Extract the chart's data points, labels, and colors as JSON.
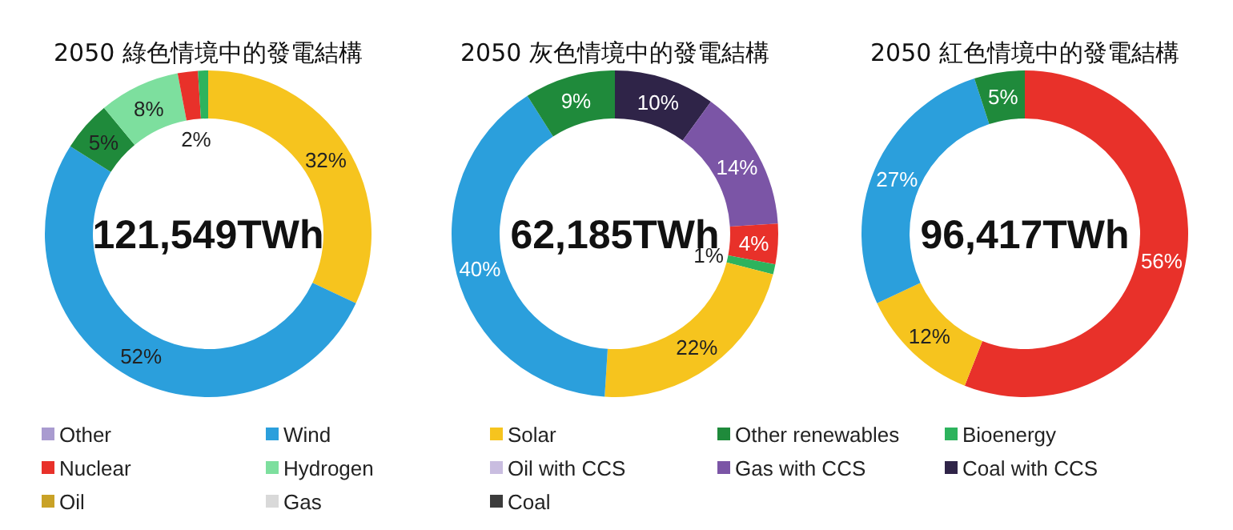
{
  "chart_data": [
    {
      "type": "donut",
      "title": "2050 綠色情境中的發電結構",
      "annotations": [
        "121,549TWh"
      ],
      "categories": [
        null,
        null,
        null,
        null,
        null,
        null
      ],
      "values": [
        32,
        52,
        5,
        8,
        2,
        1
      ],
      "value_labels": [
        "32%",
        "52%",
        "5%",
        "8%",
        "2%",
        null
      ],
      "colors": [
        "#f6c41e",
        "#2b9fdc",
        "#1f8a3b",
        "#7ddf9e",
        "#e8312a",
        "#2db35d"
      ]
    },
    {
      "type": "donut",
      "title": "2050 灰色情境中的發電結構",
      "annotations": [
        "62,185TWh"
      ],
      "categories": [
        null,
        null,
        null,
        null,
        null,
        null,
        null
      ],
      "values": [
        10,
        14,
        4,
        1,
        22,
        40,
        9
      ],
      "value_labels": [
        "10%",
        "14%",
        "4%",
        "1%",
        "22%",
        "40%",
        "9%"
      ],
      "colors": [
        "#2f2448",
        "#7b55a6",
        "#e8312a",
        "#2db35d",
        "#f6c41e",
        "#2b9fdc",
        "#1f8a3b"
      ]
    },
    {
      "type": "donut",
      "title": "2050 紅色情境中的發電結構",
      "annotations": [
        "96,417TWh"
      ],
      "categories": [
        null,
        null,
        null,
        null
      ],
      "values": [
        56,
        12,
        27,
        5
      ],
      "value_labels": [
        "56%",
        "12%",
        "27%",
        "5%"
      ],
      "colors": [
        "#e8312a",
        "#f6c41e",
        "#2b9fdc",
        "#1f8a3b"
      ]
    },
    {
      "type": "other",
      "categories": [
        "Other",
        "Wind",
        "Solar",
        "Other renewables",
        "Bioenergy",
        "Nuclear",
        "Hydrogen",
        "Oil with CCS",
        "Gas with CCS",
        "Coal with CCS",
        "Oil",
        "Gas",
        "Coal"
      ],
      "colors": [
        "#a99bd0",
        "#2b9fdc",
        "#f6c41e",
        "#1f8a3b",
        "#2db35d",
        "#e8312a",
        "#7ddf9e",
        "#c9bde0",
        "#7b55a6",
        "#2f2448",
        "#c9a227",
        "#d9d9d9",
        "#3c3c3c"
      ]
    }
  ]
}
